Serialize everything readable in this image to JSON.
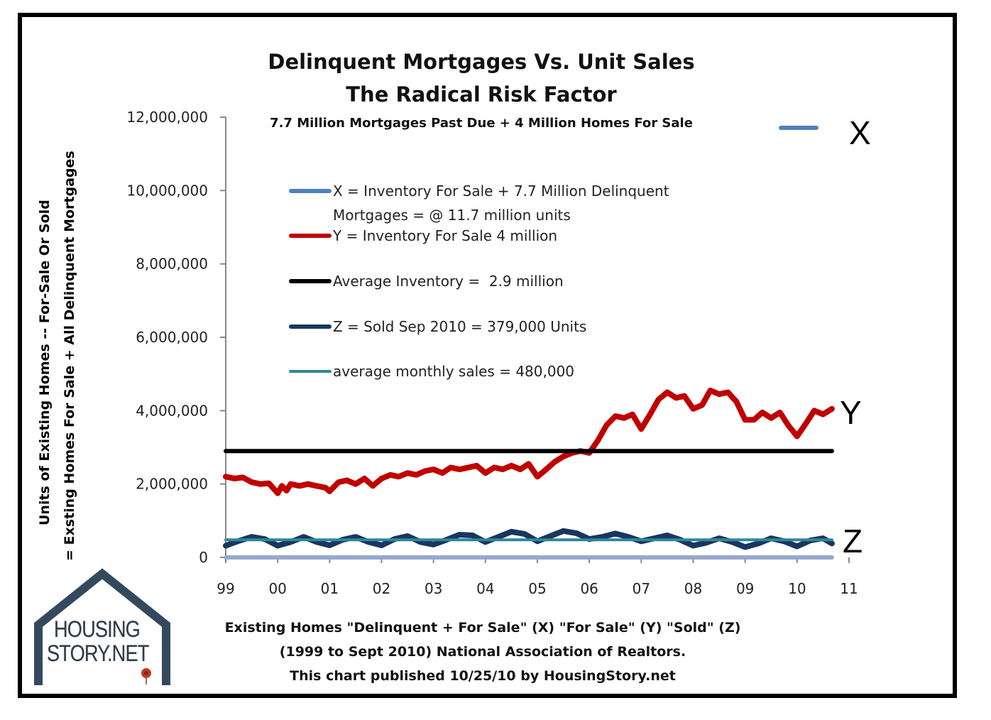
{
  "chart_data": {
    "type": "line",
    "title": "Delinquent Mortgages Vs. Unit Sales",
    "subtitle": "The Radical Risk Factor",
    "subtitle2": "7.7 Million Mortgages Past Due + 4 Million Homes For Sale",
    "ylabel": "Units of Existing Homes -- For-Sale Or Sold",
    "ylabel2": "= Exsting Homes For Sale + All Delinquent Mortgages",
    "xlabel_lines": [
      "Existing Homes \"Delinquent + For Sale\" (X) \"For Sale\" (Y) \"Sold\" (Z)",
      "(1999 to Sept 2010) National Association of Realtors.",
      "This chart published 10/25/10 by HousingStory.net"
    ],
    "ylim": [
      0,
      12000000
    ],
    "yticks": [
      0,
      2000000,
      4000000,
      6000000,
      8000000,
      10000000,
      12000000
    ],
    "ytick_labels": [
      "0",
      "2,000,000",
      "4,000,000",
      "6,000,000",
      "8,000,000",
      "10,000,000",
      "12,000,000"
    ],
    "xlim": [
      1999,
      2011
    ],
    "xticks": [
      1999,
      2000,
      2001,
      2002,
      2003,
      2004,
      2005,
      2006,
      2007,
      2008,
      2009,
      2010,
      2011
    ],
    "xtick_labels": [
      "99",
      "00",
      "01",
      "02",
      "03",
      "04",
      "05",
      "06",
      "07",
      "08",
      "09",
      "10",
      "11"
    ],
    "grid": false,
    "legend_placement": "center-top (inside plot)",
    "series": [
      {
        "key": "X",
        "name": "X = Inventory For Sale + 7.7 Million Delinquent Mortgages = @ 11.7 million units",
        "color": "#4f81bd",
        "tag": "X",
        "x": [
          2010.67,
          2010.67
        ],
        "values": [
          11700000,
          11700000
        ],
        "note": "Shown only as marker at top-right"
      },
      {
        "key": "Y",
        "name": "Y = Inventory For Sale 4 million",
        "color": "#c00000",
        "tag": "Y",
        "x": [
          1999.0,
          1999.17,
          1999.33,
          1999.5,
          1999.67,
          1999.83,
          2000.0,
          2000.08,
          2000.17,
          2000.25,
          2000.42,
          2000.58,
          2000.75,
          2000.92,
          2001.0,
          2001.17,
          2001.33,
          2001.5,
          2001.67,
          2001.83,
          2002.0,
          2002.17,
          2002.33,
          2002.5,
          2002.67,
          2002.83,
          2003.0,
          2003.17,
          2003.33,
          2003.5,
          2003.67,
          2003.83,
          2004.0,
          2004.17,
          2004.33,
          2004.5,
          2004.67,
          2004.83,
          2005.0,
          2005.17,
          2005.33,
          2005.5,
          2005.67,
          2005.83,
          2006.0,
          2006.17,
          2006.33,
          2006.5,
          2006.67,
          2006.83,
          2007.0,
          2007.17,
          2007.33,
          2007.5,
          2007.67,
          2007.83,
          2008.0,
          2008.17,
          2008.33,
          2008.5,
          2008.67,
          2008.83,
          2009.0,
          2009.17,
          2009.33,
          2009.5,
          2009.67,
          2009.83,
          2010.0,
          2010.17,
          2010.33,
          2010.5,
          2010.67
        ],
        "values": [
          2200000,
          2150000,
          2180000,
          2050000,
          2000000,
          2020000,
          1750000,
          1950000,
          1820000,
          2000000,
          1950000,
          2000000,
          1950000,
          1900000,
          1800000,
          2050000,
          2100000,
          2000000,
          2150000,
          1950000,
          2150000,
          2250000,
          2200000,
          2300000,
          2250000,
          2350000,
          2400000,
          2300000,
          2450000,
          2400000,
          2450000,
          2500000,
          2300000,
          2450000,
          2400000,
          2500000,
          2400000,
          2550000,
          2200000,
          2400000,
          2600000,
          2750000,
          2850000,
          2900000,
          2850000,
          3200000,
          3600000,
          3850000,
          3800000,
          3900000,
          3500000,
          3900000,
          4300000,
          4500000,
          4350000,
          4400000,
          4050000,
          4150000,
          4550000,
          4450000,
          4500000,
          4250000,
          3750000,
          3750000,
          3950000,
          3800000,
          3950000,
          3600000,
          3300000,
          3650000,
          4000000,
          3900000,
          4050000
        ]
      },
      {
        "key": "AVG_INV",
        "name": "Average Inventory =  2.9 million",
        "color": "#000000",
        "x": [
          1999.0,
          2010.67
        ],
        "values": [
          2900000,
          2900000
        ]
      },
      {
        "key": "Z",
        "name": "Z = Sold Sep 2010 = 379,000 Units",
        "color": "#17375e",
        "tag": "Z",
        "x": [
          1999.0,
          1999.25,
          1999.5,
          1999.75,
          2000.0,
          2000.25,
          2000.5,
          2000.75,
          2001.0,
          2001.25,
          2001.5,
          2001.75,
          2002.0,
          2002.25,
          2002.5,
          2002.75,
          2003.0,
          2003.25,
          2003.5,
          2003.75,
          2004.0,
          2004.25,
          2004.5,
          2004.75,
          2005.0,
          2005.25,
          2005.5,
          2005.75,
          2006.0,
          2006.25,
          2006.5,
          2006.75,
          2007.0,
          2007.25,
          2007.5,
          2007.75,
          2008.0,
          2008.25,
          2008.5,
          2008.75,
          2009.0,
          2009.25,
          2009.5,
          2009.75,
          2010.0,
          2010.25,
          2010.5,
          2010.67
        ],
        "values": [
          320000,
          450000,
          560000,
          500000,
          320000,
          420000,
          560000,
          420000,
          330000,
          480000,
          560000,
          420000,
          330000,
          500000,
          580000,
          420000,
          350000,
          480000,
          620000,
          600000,
          420000,
          560000,
          700000,
          640000,
          440000,
          580000,
          720000,
          660000,
          500000,
          560000,
          650000,
          560000,
          440000,
          520000,
          600000,
          480000,
          320000,
          400000,
          520000,
          420000,
          280000,
          380000,
          520000,
          440000,
          300000,
          460000,
          520000,
          379000
        ]
      },
      {
        "key": "AVG_SALES",
        "name": "average monthly sales = 480,000",
        "color": "#31859c",
        "x": [
          1999.0,
          2010.67
        ],
        "values": [
          480000,
          480000
        ]
      },
      {
        "key": "BASE",
        "name": "baseline",
        "color": "#95a9cd",
        "x": [
          1999.0,
          2010.67
        ],
        "values": [
          0,
          0
        ]
      }
    ],
    "annotations": [
      "X",
      "Y",
      "Z"
    ]
  },
  "logo": {
    "line1": "HOUSING",
    "line2": "STORY.NET"
  }
}
